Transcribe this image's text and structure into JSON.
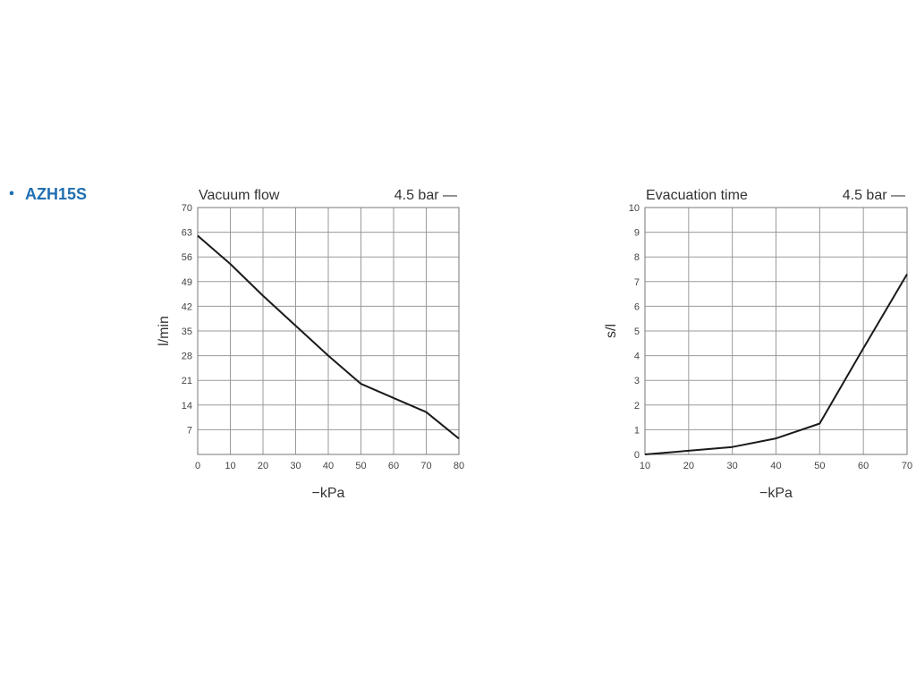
{
  "heading": {
    "bullet": "・",
    "text": "AZH15S"
  },
  "chart_data": [
    {
      "type": "line",
      "title": "Vacuum flow",
      "legend": "4.5 bar —",
      "xlabel": "−kPa",
      "ylabel": "l/min",
      "xlim": [
        0,
        80
      ],
      "ylim": [
        0,
        70
      ],
      "x_ticks": [
        0,
        10,
        20,
        30,
        40,
        50,
        60,
        70,
        80
      ],
      "y_ticks": [
        7,
        14,
        21,
        28,
        35,
        42,
        49,
        56,
        63,
        70
      ],
      "grid": true,
      "series": [
        {
          "name": "4.5 bar",
          "x": [
            0,
            10,
            20,
            30,
            40,
            50,
            60,
            70,
            80
          ],
          "y": [
            62,
            54,
            45,
            36.5,
            28,
            20,
            16,
            12,
            4.5
          ]
        }
      ]
    },
    {
      "type": "line",
      "title": "Evacuation time",
      "legend": "4.5 bar —",
      "xlabel": "−kPa",
      "ylabel": "s/l",
      "xlim": [
        10,
        70
      ],
      "ylim": [
        0,
        10
      ],
      "x_ticks": [
        10,
        20,
        30,
        40,
        50,
        60,
        70
      ],
      "y_ticks": [
        0,
        1,
        2,
        3,
        4,
        5,
        6,
        7,
        8,
        9,
        10
      ],
      "grid": true,
      "series": [
        {
          "name": "4.5 bar",
          "x": [
            10,
            20,
            30,
            40,
            50,
            60,
            70
          ],
          "y": [
            0,
            0.15,
            0.3,
            0.65,
            1.25,
            4.3,
            7.3
          ]
        }
      ]
    }
  ]
}
